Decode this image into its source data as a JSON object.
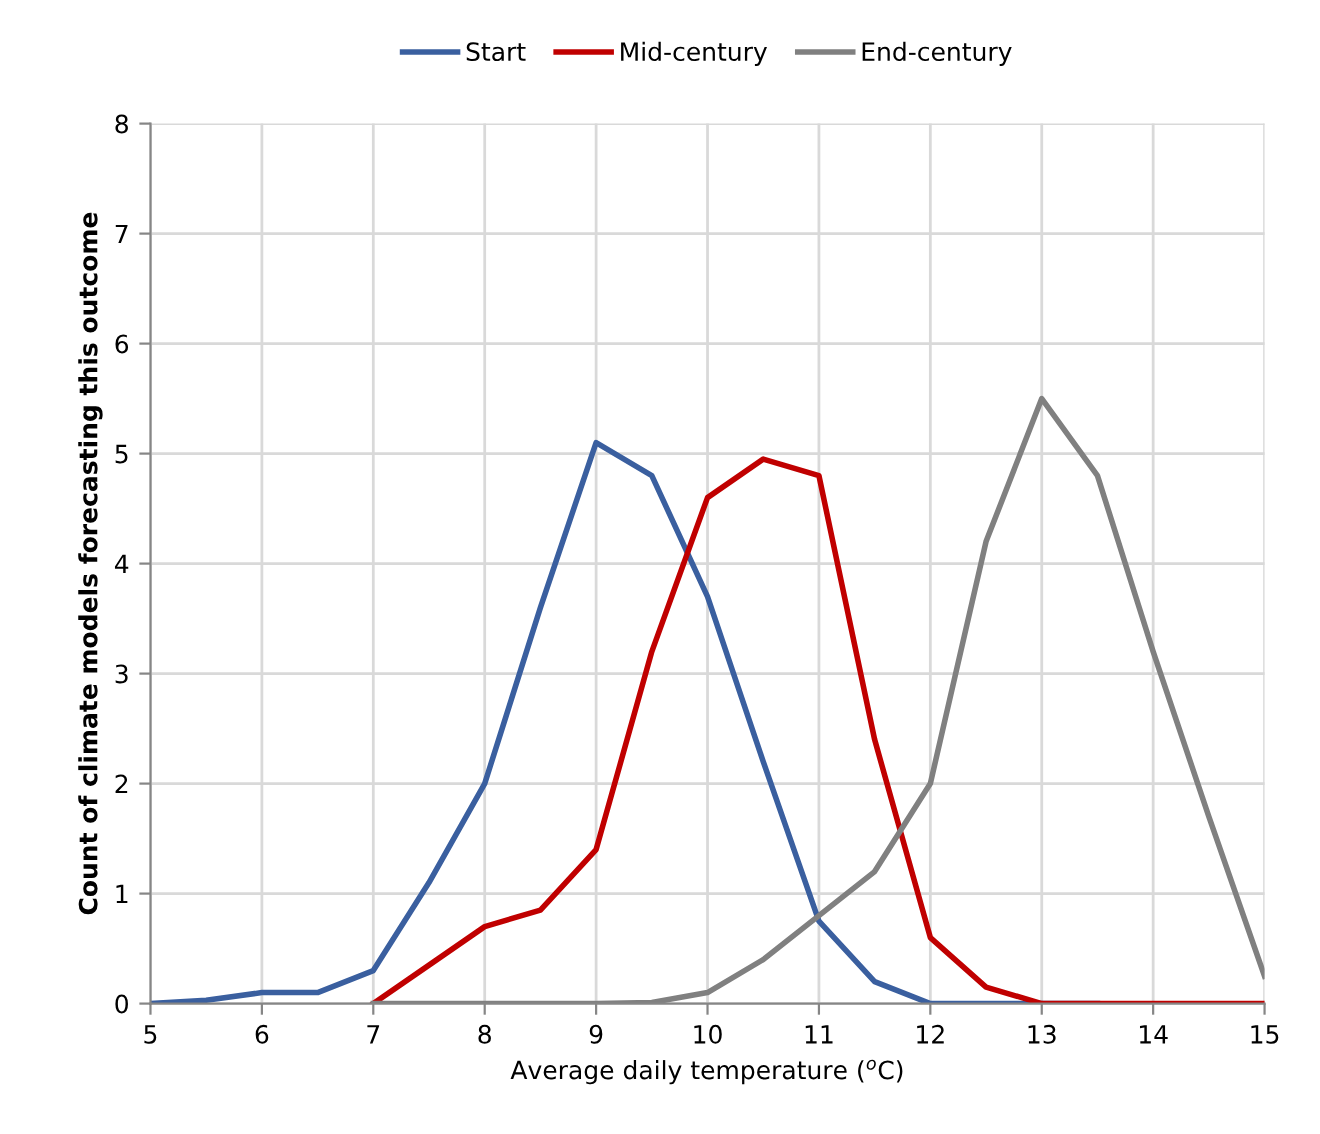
{
  "chart_data": {
    "type": "line",
    "xlabel": "Average daily temperature ($^{o}$C)",
    "ylabel": "Count of climate models forecasting this outcome",
    "series": [
      {
        "name": "Start",
        "color": "#3a5f9f",
        "x": [
          5,
          5.5,
          6,
          6.5,
          7,
          7.5,
          8,
          8.5,
          9,
          9.5,
          10,
          10.5,
          11,
          11.5,
          12,
          12.5,
          13,
          13.5
        ],
        "values": [
          0,
          0.03,
          0.1,
          0.1,
          0.3,
          1.1,
          2.0,
          3.6,
          5.1,
          4.8,
          3.7,
          2.2,
          0.75,
          0.2,
          0,
          0,
          0,
          0
        ]
      },
      {
        "name": "Mid-century",
        "color": "#c00000",
        "x": [
          7,
          7.5,
          8,
          8.5,
          9,
          9.5,
          10,
          10.5,
          11,
          11.5,
          12,
          12.5,
          13,
          13.5,
          14,
          14.5,
          15
        ],
        "values": [
          0,
          0.35,
          0.7,
          0.85,
          1.4,
          3.2,
          4.6,
          4.95,
          4.8,
          2.4,
          0.6,
          0.15,
          0,
          0,
          0,
          0,
          0
        ]
      },
      {
        "name": "End-century",
        "color": "#808080",
        "x": [
          7,
          7.5,
          8,
          8.5,
          9,
          9.5,
          10,
          10.5,
          11,
          11.5,
          12,
          12.5,
          13,
          13.5,
          14,
          14.5,
          15
        ],
        "values": [
          0,
          0,
          0,
          0,
          0,
          0.01,
          0.1,
          0.4,
          0.8,
          1.2,
          2.0,
          4.2,
          5.5,
          4.8,
          3.2,
          1.7,
          0.25
        ]
      }
    ],
    "xlim": [
      5,
      15
    ],
    "xticks": [
      5,
      6,
      7,
      8,
      9,
      10,
      11,
      12,
      13,
      14,
      15
    ],
    "ylim": [
      0,
      8
    ],
    "yticks": [
      0,
      1,
      2,
      3,
      4,
      5,
      6,
      7,
      8
    ],
    "grid": true,
    "legend": "top",
    "marker": "none",
    "line_style": "solid"
  }
}
